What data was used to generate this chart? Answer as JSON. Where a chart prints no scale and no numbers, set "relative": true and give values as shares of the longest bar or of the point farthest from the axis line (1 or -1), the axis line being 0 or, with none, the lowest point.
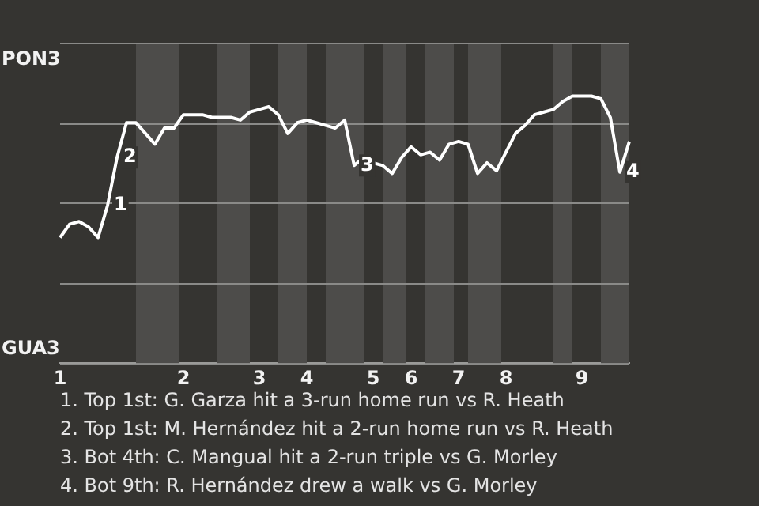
{
  "chart_data": {
    "type": "line",
    "relative": true,
    "grid": "y",
    "marker": "none",
    "categories": [
      "1",
      null,
      null,
      null,
      null,
      null,
      null,
      null,
      null,
      null,
      null,
      null,
      null,
      "2",
      null,
      null,
      null,
      null,
      null,
      null,
      null,
      "3",
      null,
      null,
      null,
      null,
      "4",
      null,
      null,
      null,
      null,
      null,
      null,
      "5",
      null,
      null,
      null,
      "6",
      null,
      null,
      null,
      null,
      "7",
      null,
      null,
      null,
      null,
      "8",
      null,
      null,
      null,
      null,
      null,
      null,
      null,
      "9",
      null,
      null,
      null,
      null,
      null
    ],
    "series": [
      {
        "color": "#ffffff",
        "values": [
          0.47,
          0.52,
          0.53,
          0.51,
          0.47,
          0.59,
          0.77,
          0.9,
          0.9,
          0.86,
          0.82,
          0.88,
          0.88,
          0.93,
          0.93,
          0.93,
          0.92,
          0.92,
          0.92,
          0.91,
          0.94,
          0.95,
          0.96,
          0.93,
          0.86,
          0.9,
          0.91,
          0.9,
          0.89,
          0.88,
          0.91,
          0.74,
          0.77,
          0.75,
          0.74,
          0.71,
          0.77,
          0.81,
          0.78,
          0.79,
          0.76,
          0.82,
          0.83,
          0.82,
          0.71,
          0.75,
          0.72,
          0.79,
          0.86,
          0.89,
          0.93,
          0.94,
          0.95,
          0.98,
          1,
          1,
          1,
          0.99,
          0.92,
          0.715,
          0.83
        ]
      }
    ],
    "annotations": [
      {
        "text": "1",
        "y": 0.59
      },
      {
        "text": "2",
        "y": 0.77
      },
      {
        "text": "3",
        "y": 0.74
      },
      {
        "text": "4",
        "y": 0.715
      },
      "PON3",
      "GUA3",
      "1. Top 1st: G. Garza hit a 3-run home run vs R. Heath",
      "2. Top 1st: M. Hernández hit a 2-run home run vs R. Heath",
      "3. Bot 4th: C. Mangual hit a 2-run triple vs G. Morley",
      "4. Bot 9th: R. Hernández drew a walk vs G. Morley"
    ]
  }
}
